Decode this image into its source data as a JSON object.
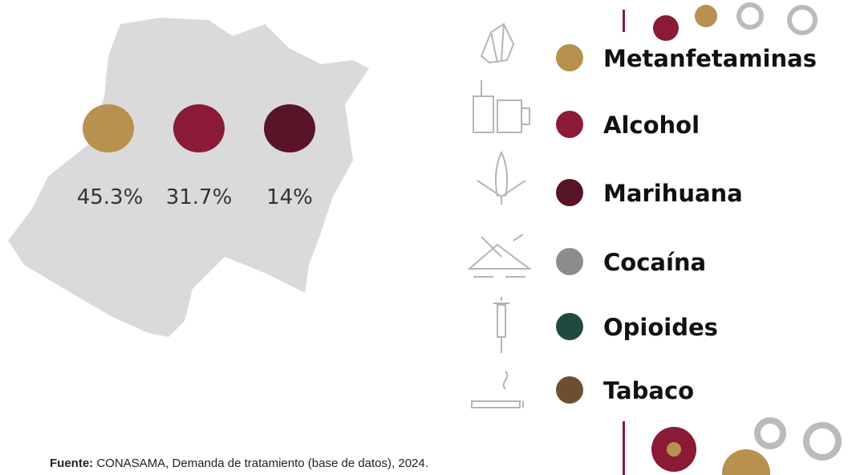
{
  "map_stats": [
    {
      "label": "45.3%",
      "color": "#b8914f"
    },
    {
      "label": "31.7%",
      "color": "#8a1a35"
    },
    {
      "label": "14%",
      "color": "#5a1428"
    }
  ],
  "legend": [
    {
      "label": "Metanfetaminas",
      "color": "#b8914f"
    },
    {
      "label": "Alcohol",
      "color": "#8a1a35"
    },
    {
      "label": "Marihuana",
      "color": "#5a1428"
    },
    {
      "label": "Cocaína",
      "color": "#8c8c8c"
    },
    {
      "label": "Opioides",
      "color": "#1f4a40"
    },
    {
      "label": "Tabaco",
      "color": "#6b4f2e"
    }
  ],
  "source": {
    "label": "Fuente:",
    "text": "CONASAMA, Demanda de tratamiento (base de datos), 2024."
  }
}
